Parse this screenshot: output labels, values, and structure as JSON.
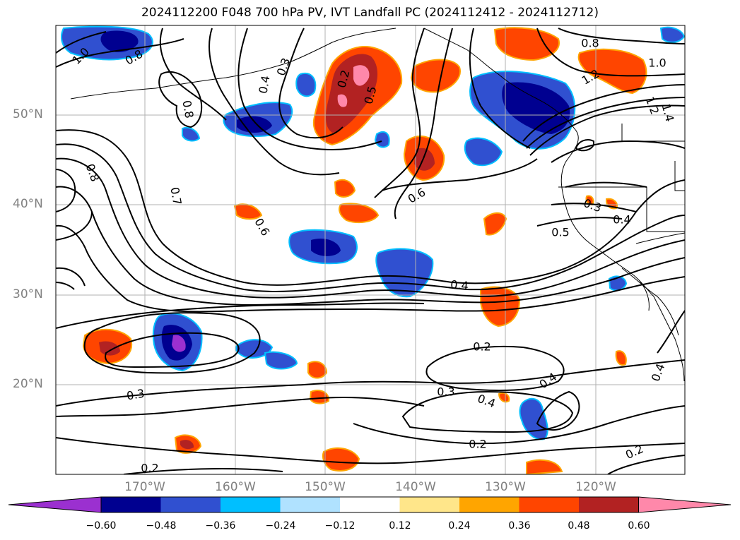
{
  "title": "2024112200 F048 700 hPa PV, IVT Landfall PC (2024112412 - 2024112712)",
  "lat_labels": [
    "50°N",
    "40°N",
    "30°N",
    "20°N"
  ],
  "lon_labels": [
    "170°W",
    "160°W",
    "150°W",
    "140°W",
    "130°W",
    "120°W"
  ],
  "colorbar": {
    "ticks": [
      "−0.60",
      "−0.48",
      "−0.36",
      "−0.24",
      "−0.12",
      "0.12",
      "0.24",
      "0.36",
      "0.48",
      "0.60"
    ],
    "colors": [
      "#9b30d0",
      "#000090",
      "#3050d0",
      "#00bfff",
      "#b0e2ff",
      "#ffffff",
      "#ffe68a",
      "#ffa500",
      "#ff4500",
      "#b22222",
      "#ff88aa"
    ]
  },
  "contour_labels": [
    "1.0",
    "0.8",
    "0.3",
    "0.4",
    "0.2",
    "0.5",
    "0.8",
    "1.0",
    "1.2",
    "1.4",
    "1.2",
    "0.8",
    "0.8",
    "0.7",
    "0.6",
    "0.6",
    "0.3",
    "0.4",
    "0.5",
    "0.4",
    "0.2",
    "0.3",
    "0.4",
    "0.4",
    "0.2",
    "0.4",
    "0.3",
    "0.2",
    "0.2"
  ],
  "colors": {
    "lat_lon_label": "#808080",
    "contour": "#000000",
    "grid": "#b0b0b0"
  }
}
